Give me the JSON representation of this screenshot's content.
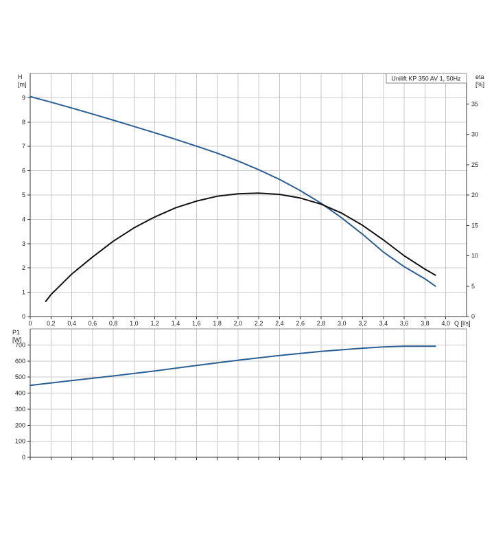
{
  "chart_data": [
    {
      "type": "line",
      "title": "Unilift KP 350 AV 1, 50Hz",
      "xlabel": "Q [l/s]",
      "ylabel": "H\n[m]",
      "y2label": "eta\n[%]",
      "xlim": [
        0,
        4.2
      ],
      "ylim": [
        0,
        10
      ],
      "y2lim": [
        0,
        40
      ],
      "grid": true,
      "x_ticks": [
        "0",
        "0,2",
        "0,4",
        "0,6",
        "0,8",
        "1,0",
        "1,2",
        "1,4",
        "1,6",
        "1,8",
        "2,0",
        "2,2",
        "2,4",
        "2,6",
        "2,8",
        "3,0",
        "3,2",
        "3,4",
        "3,6",
        "3,8",
        "4,0"
      ],
      "y_ticks": [
        "0",
        "1",
        "2",
        "3",
        "4",
        "5",
        "6",
        "7",
        "8",
        "9"
      ],
      "y2_ticks": [
        "0",
        "5",
        "10",
        "15",
        "20",
        "25",
        "30",
        "35"
      ],
      "series": [
        {
          "axis": "left",
          "color": "#2b5f94",
          "x": [
            0,
            0.2,
            0.4,
            0.6,
            0.8,
            1.0,
            1.2,
            1.4,
            1.6,
            1.8,
            2.0,
            2.2,
            2.4,
            2.6,
            2.8,
            3.0,
            3.2,
            3.4,
            3.6,
            3.8,
            3.9
          ],
          "y": [
            9.05,
            8.82,
            8.58,
            8.33,
            8.08,
            7.82,
            7.56,
            7.29,
            7.01,
            6.72,
            6.4,
            6.04,
            5.64,
            5.18,
            4.66,
            4.05,
            3.38,
            2.65,
            2.05,
            1.55,
            1.25
          ]
        },
        {
          "axis": "right",
          "color": "#111111",
          "x": [
            0.15,
            0.2,
            0.4,
            0.6,
            0.8,
            1.0,
            1.2,
            1.4,
            1.6,
            1.8,
            2.0,
            2.2,
            2.4,
            2.6,
            2.8,
            3.0,
            3.2,
            3.4,
            3.6,
            3.8,
            3.9
          ],
          "y": [
            2.5,
            3.6,
            7.0,
            9.8,
            12.4,
            14.6,
            16.4,
            17.9,
            19.0,
            19.8,
            20.2,
            20.3,
            20.1,
            19.5,
            18.5,
            17.0,
            15.0,
            12.6,
            10.0,
            7.8,
            6.8
          ]
        }
      ]
    },
    {
      "type": "line",
      "xlabel": "",
      "ylabel": "P1\n[W]",
      "xlim": [
        0,
        4.2
      ],
      "ylim": [
        0,
        800
      ],
      "grid": true,
      "y_ticks": [
        "0",
        "100",
        "200",
        "300",
        "400",
        "500",
        "600",
        "700"
      ],
      "series": [
        {
          "color": "#2b5f94",
          "x": [
            0,
            0.4,
            0.8,
            1.2,
            1.6,
            2.0,
            2.4,
            2.8,
            3.2,
            3.4,
            3.6,
            3.9
          ],
          "y": [
            448,
            478,
            507,
            538,
            572,
            605,
            634,
            660,
            680,
            688,
            692,
            692
          ]
        }
      ]
    }
  ]
}
